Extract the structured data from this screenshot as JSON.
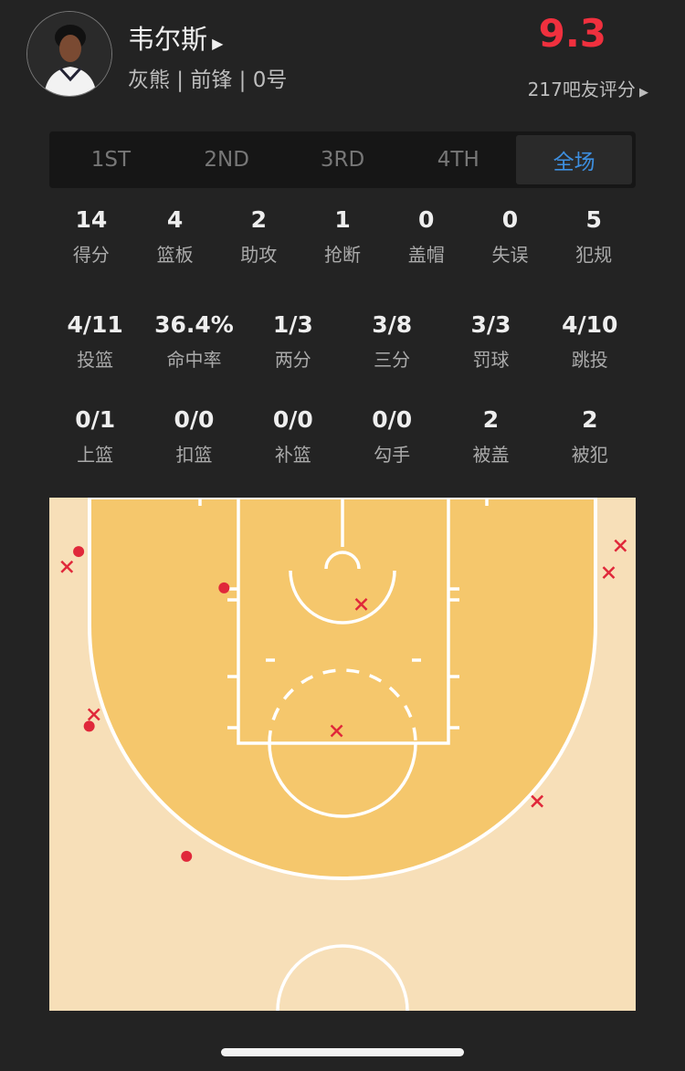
{
  "player": {
    "name": "韦尔斯",
    "meta": "灰熊 | 前锋 | 0号",
    "rating": "9.3",
    "raters": "217吧友评分"
  },
  "tabs": [
    "1ST",
    "2ND",
    "3RD",
    "4TH",
    "全场"
  ],
  "active_tab": "全场",
  "stats_row1": [
    {
      "v": "14",
      "l": "得分"
    },
    {
      "v": "4",
      "l": "篮板"
    },
    {
      "v": "2",
      "l": "助攻"
    },
    {
      "v": "1",
      "l": "抢断"
    },
    {
      "v": "0",
      "l": "盖帽"
    },
    {
      "v": "0",
      "l": "失误"
    },
    {
      "v": "5",
      "l": "犯规"
    }
  ],
  "stats_row2": [
    {
      "v": "4/11",
      "l": "投篮"
    },
    {
      "v": "36.4%",
      "l": "命中率"
    },
    {
      "v": "1/3",
      "l": "两分"
    },
    {
      "v": "3/8",
      "l": "三分"
    },
    {
      "v": "3/3",
      "l": "罚球"
    },
    {
      "v": "4/10",
      "l": "跳投"
    }
  ],
  "stats_row3": [
    {
      "v": "0/1",
      "l": "上篮"
    },
    {
      "v": "0/0",
      "l": "扣篮"
    },
    {
      "v": "0/0",
      "l": "补篮"
    },
    {
      "v": "0/0",
      "l": "勾手"
    },
    {
      "v": "2",
      "l": "被盖"
    },
    {
      "v": "2",
      "l": "被犯"
    }
  ],
  "colors": {
    "rating": "#f0303e",
    "active_tab": "#3d8fe0",
    "paint": "#f5c76c",
    "court": "#f7dfb8",
    "shot": "#e0283a"
  },
  "shot_chart": {
    "units": "feet from left sideline / baseline",
    "made": [
      [
        2.5,
        4.6
      ],
      [
        14.9,
        7.7
      ],
      [
        3.4,
        19.5
      ],
      [
        11.7,
        30.6
      ]
    ],
    "missed": [
      [
        1.5,
        5.9
      ],
      [
        26.6,
        9.1
      ],
      [
        24.5,
        19.9
      ],
      [
        3.8,
        18.5
      ],
      [
        48.7,
        4.1
      ],
      [
        47.7,
        6.4
      ],
      [
        41.6,
        25.9
      ]
    ]
  }
}
